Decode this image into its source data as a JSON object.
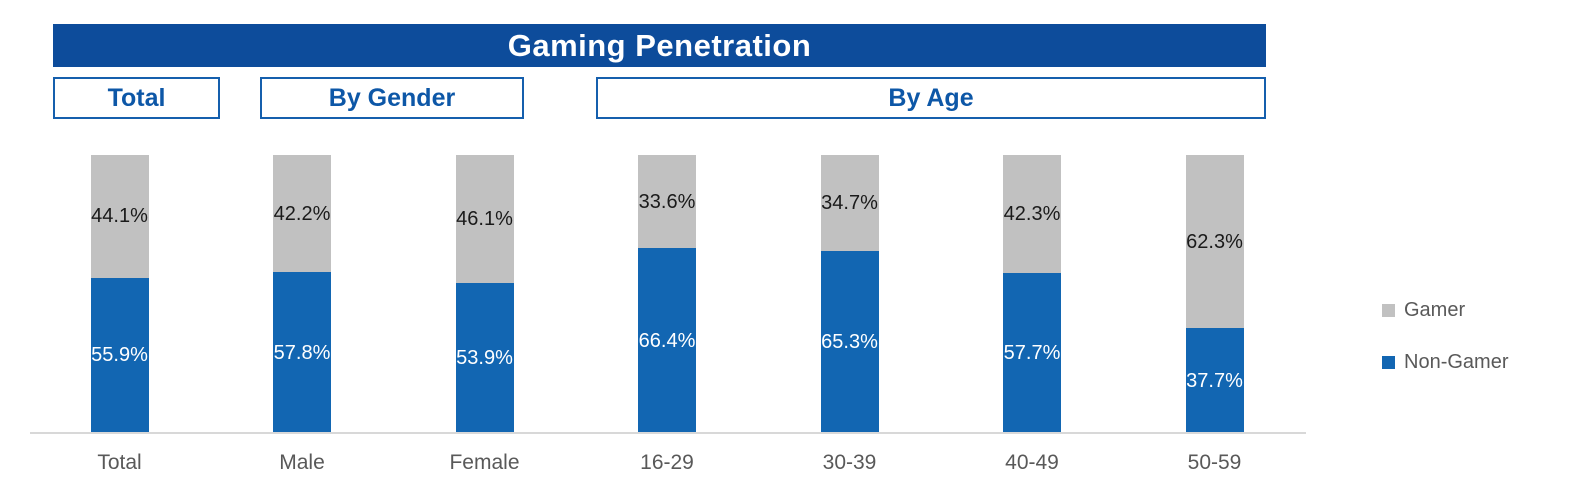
{
  "title": "Gaming Penetration",
  "sections": [
    {
      "label": "Total"
    },
    {
      "label": "By Gender"
    },
    {
      "label": "By Age"
    }
  ],
  "legend": {
    "items": [
      {
        "label": "Gamer",
        "color": "#c1c1c1"
      },
      {
        "label": "Non-Gamer",
        "color": "#1266b2"
      }
    ]
  },
  "colors": {
    "title_bg": "#0d4c9b",
    "title_text": "#ffffff",
    "section_border": "#155fad",
    "section_text": "#0d57a7",
    "axis_line": "#d8d8d8",
    "category_text": "#595959"
  },
  "chart_data": {
    "type": "bar",
    "subtype": "stacked-100-percent-column",
    "categories": [
      "Total",
      "Male",
      "Female",
      "16-29",
      "30-39",
      "40-49",
      "50-59"
    ],
    "series": [
      {
        "name": "Gamer",
        "values": [
          44.1,
          42.2,
          46.1,
          33.6,
          34.7,
          42.3,
          62.3
        ],
        "color": "#c1c1c1",
        "label_color": "#1a1a1a"
      },
      {
        "name": "Non-Gamer",
        "values": [
          55.9,
          57.8,
          53.9,
          66.4,
          65.3,
          57.7,
          37.7
        ],
        "color": "#1266b2",
        "label_color": "#ffffff"
      }
    ],
    "title": "Gaming Penetration",
    "xlabel": "",
    "ylabel": "",
    "ylim": [
      0,
      100
    ],
    "value_suffix": "%",
    "grid": false,
    "legend_position": "right",
    "segment_order_top_to_bottom": [
      "Gamer",
      "Non-Gamer"
    ]
  }
}
